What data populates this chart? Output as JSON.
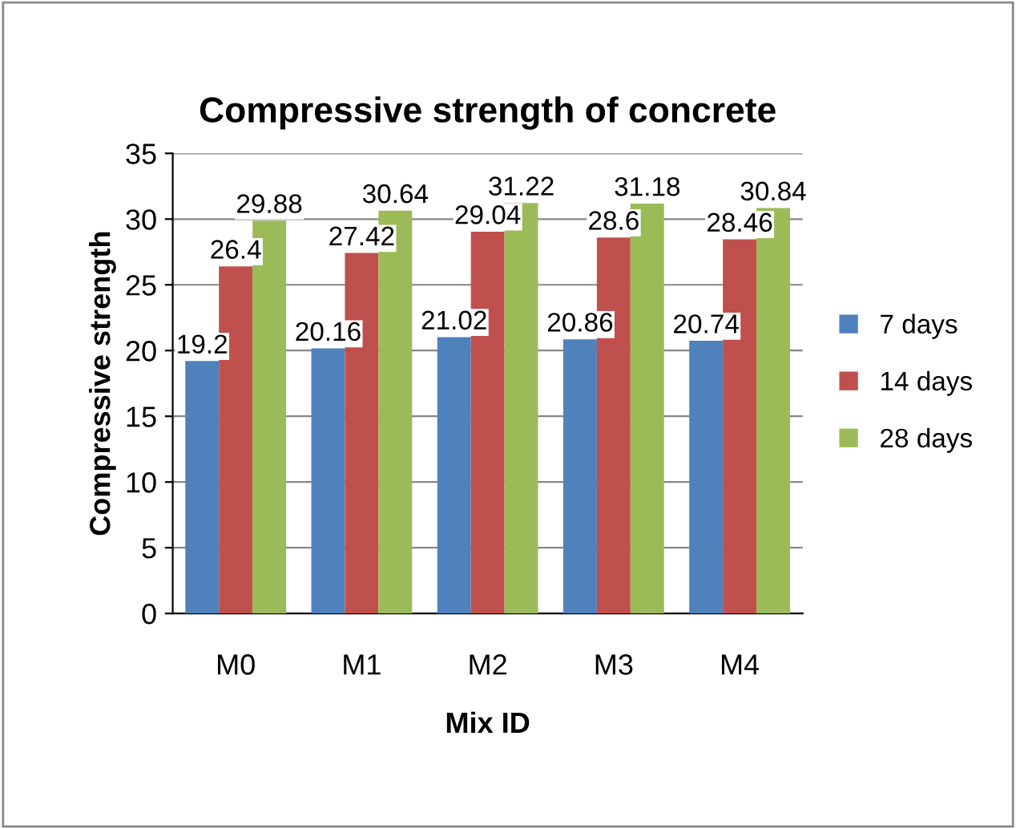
{
  "chart_data": {
    "type": "bar",
    "title": "Compressive strength of concrete",
    "xlabel": "Mix ID",
    "ylabel": "Compressive strength",
    "categories": [
      "M0",
      "M1",
      "M2",
      "M3",
      "M4"
    ],
    "series": [
      {
        "name": "7 days",
        "color": "#4f81bd",
        "values": [
          19.2,
          20.16,
          21.02,
          20.86,
          20.74
        ]
      },
      {
        "name": "14 days",
        "color": "#c0504d",
        "values": [
          26.4,
          27.42,
          29.04,
          28.6,
          28.46
        ]
      },
      {
        "name": "28 days",
        "color": "#9bbb59",
        "values": [
          29.88,
          30.64,
          31.22,
          31.18,
          30.84
        ]
      }
    ],
    "ylim": [
      0,
      35
    ],
    "yticks": [
      0,
      5,
      10,
      15,
      20,
      25,
      30,
      35
    ],
    "grid": "y",
    "legend": "right",
    "data_labels": true
  }
}
